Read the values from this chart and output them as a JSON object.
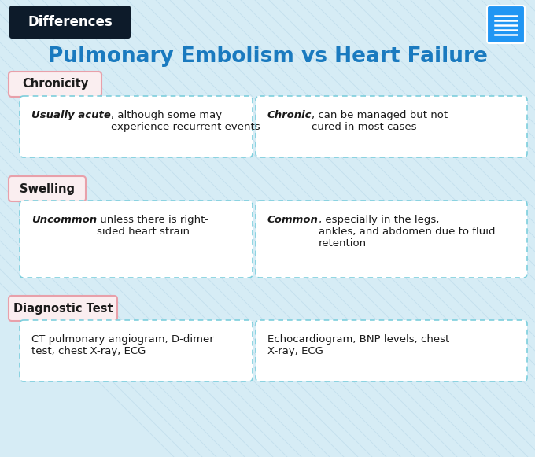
{
  "title": "Pulmonary Embolism vs Heart Failure",
  "header_label": "Differences",
  "bg_color": "#d6ecf5",
  "title_color": "#1a7abf",
  "header_bg": "#0d1b2a",
  "header_text_color": "#ffffff",
  "icon_color": "#2196f3",
  "categories": [
    {
      "name": "Chronicity",
      "cat_border": "#e8a0aa",
      "cat_bg": "#faeef0",
      "left_bold": "Usually acute",
      "left_rest": ", although some may\nexperience recurrent events",
      "right_bold": "Chronic",
      "right_rest": ", can be managed but not\ncured in most cases"
    },
    {
      "name": "Swelling",
      "cat_border": "#e8a0aa",
      "cat_bg": "#faeef0",
      "left_bold": "Uncommon",
      "left_rest": " unless there is right-\nsided heart strain",
      "right_bold": "Common",
      "right_rest": ", especially in the legs,\nankles, and abdomen due to fluid\nretention"
    },
    {
      "name": "Diagnostic Test",
      "cat_border": "#e8a0aa",
      "cat_bg": "#faeef0",
      "left_bold": "",
      "left_rest": "CT pulmonary angiogram, D-dimer\ntest, chest X-ray, ECG",
      "right_bold": "",
      "right_rest": "Echocardiogram, BNP levels, chest\nX-ray, ECG"
    }
  ],
  "box_border_color": "#7ecfdd",
  "box_bg_color": "#ffffff",
  "text_color": "#1a1a1a",
  "font_size_title": 19,
  "font_size_header": 12,
  "font_size_category": 10.5,
  "font_size_content": 9.5
}
